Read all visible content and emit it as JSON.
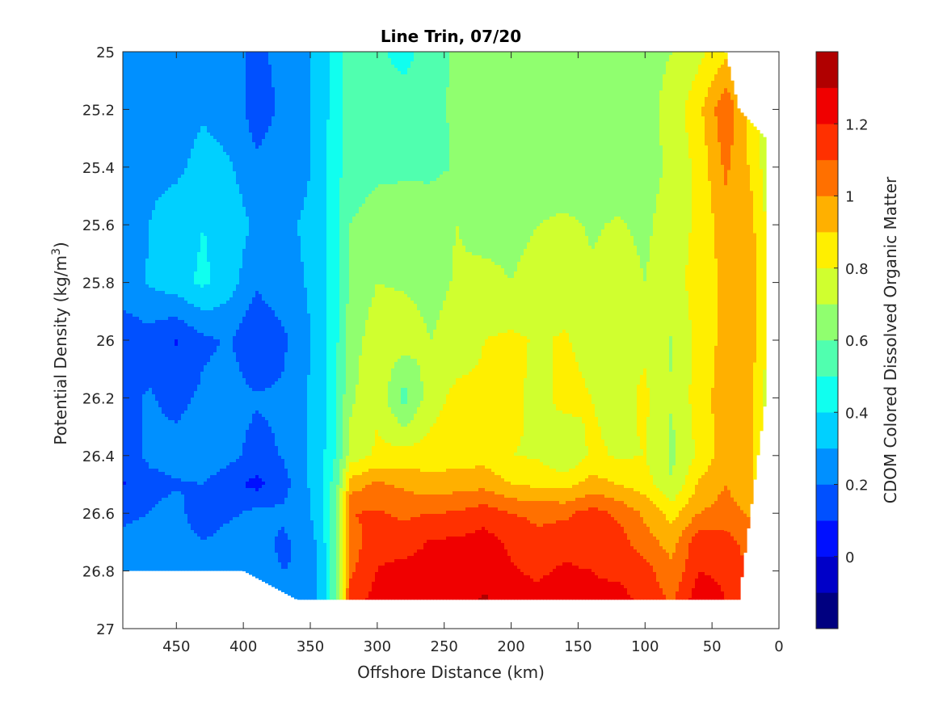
{
  "chart_data": {
    "type": "heatmap",
    "subtype": "filled-contour",
    "title": "Line Trin, 07/20",
    "xlabel": "Offshore Distance (km)",
    "ylabel": "Potential Density (kg/m",
    "ylabel_superscript": "3",
    "ylabel_suffix": ")",
    "xlim": [
      490,
      0
    ],
    "x_reversed": true,
    "ylim": [
      25,
      27
    ],
    "y_reversed": true,
    "xticks": [
      450,
      400,
      350,
      300,
      250,
      200,
      150,
      100,
      50,
      0
    ],
    "yticks": [
      25,
      25.2,
      25.4,
      25.6,
      25.8,
      26,
      26.2,
      26.4,
      26.6,
      26.8,
      27
    ],
    "ytick_labels": [
      "25",
      "25.2",
      "25.4",
      "25.6",
      "25.8",
      "26",
      "26.2",
      "26.4",
      "26.6",
      "26.8",
      "27"
    ],
    "colorbar": {
      "label": "CDOM Colored Dissolved Organic Matter",
      "range": [
        -0.2,
        1.4
      ],
      "levels": [
        -0.2,
        -0.1,
        0,
        0.1,
        0.2,
        0.3,
        0.4,
        0.5,
        0.6,
        0.7,
        0.8,
        0.9,
        1,
        1.1,
        1.2,
        1.3,
        1.4
      ],
      "ticks": [
        0,
        0.2,
        0.4,
        0.6,
        0.8,
        1,
        1.2
      ],
      "tick_labels": [
        "0",
        "0.2",
        "0.4",
        "0.6",
        "0.8",
        "1",
        "1.2"
      ],
      "colors": [
        "#000080",
        "#0000c8",
        "#0010ff",
        "#0050ff",
        "#0090ff",
        "#00d0ff",
        "#10ffef",
        "#50ffaf",
        "#90ff6f",
        "#d0ff2f",
        "#ffef00",
        "#ffb000",
        "#ff7000",
        "#ff3000",
        "#f00000",
        "#b00000"
      ]
    },
    "data_extent": {
      "columns_x": [
        490,
        450,
        400,
        360,
        340,
        320,
        300,
        250,
        200,
        150,
        100,
        80,
        60,
        40,
        30,
        10
      ],
      "deepest_density": [
        26.8,
        26.8,
        26.8,
        26.9,
        26.9,
        26.9,
        26.9,
        26.9,
        26.9,
        26.9,
        26.9,
        26.9,
        26.9,
        26.9,
        26.9,
        26.2
      ],
      "shallowest_density": [
        25,
        25,
        25,
        25,
        25,
        25,
        25,
        25,
        25,
        25,
        25,
        25,
        25,
        25,
        25.2,
        25.3
      ]
    },
    "field": {
      "x": [
        490,
        470,
        450,
        430,
        410,
        390,
        370,
        350,
        340,
        330,
        320,
        300,
        280,
        260,
        240,
        220,
        200,
        180,
        160,
        140,
        120,
        100,
        80,
        60,
        40,
        20,
        10
      ],
      "y": [
        25.0,
        25.2,
        25.4,
        25.6,
        25.8,
        26.0,
        26.2,
        26.4,
        26.5,
        26.6,
        26.7,
        26.8,
        26.9
      ],
      "z": [
        [
          0.26,
          0.28,
          0.24,
          0.25,
          0.24,
          0.17,
          0.24,
          0.3,
          0.36,
          0.45,
          0.55,
          0.52,
          0.46,
          0.56,
          0.62,
          0.64,
          0.65,
          0.66,
          0.65,
          0.64,
          0.64,
          0.66,
          0.7,
          0.77,
          0.87,
          0.8,
          0.72
        ],
        [
          0.24,
          0.28,
          0.26,
          0.29,
          0.26,
          0.15,
          0.22,
          0.3,
          0.37,
          0.46,
          0.55,
          0.56,
          0.55,
          0.57,
          0.62,
          0.64,
          0.65,
          0.65,
          0.64,
          0.64,
          0.65,
          0.66,
          0.74,
          0.87,
          1.08,
          0.86,
          0.75
        ],
        [
          0.21,
          0.28,
          0.28,
          0.33,
          0.31,
          0.22,
          0.26,
          0.3,
          0.37,
          0.47,
          0.56,
          0.58,
          0.58,
          0.57,
          0.61,
          0.64,
          0.64,
          0.63,
          0.63,
          0.64,
          0.65,
          0.66,
          0.72,
          0.83,
          1.02,
          0.88,
          0.76
        ],
        [
          0.23,
          0.3,
          0.35,
          0.4,
          0.36,
          0.28,
          0.29,
          0.31,
          0.37,
          0.48,
          0.6,
          0.64,
          0.66,
          0.68,
          0.7,
          0.66,
          0.67,
          0.7,
          0.72,
          0.69,
          0.71,
          0.68,
          0.75,
          0.82,
          0.96,
          0.92,
          0.8
        ],
        [
          0.26,
          0.31,
          0.36,
          0.42,
          0.34,
          0.22,
          0.27,
          0.31,
          0.37,
          0.48,
          0.62,
          0.7,
          0.69,
          0.67,
          0.71,
          0.73,
          0.7,
          0.74,
          0.76,
          0.71,
          0.74,
          0.7,
          0.76,
          0.84,
          0.92,
          0.94,
          0.82
        ],
        [
          0.13,
          0.16,
          0.09,
          0.18,
          0.21,
          0.1,
          0.18,
          0.3,
          0.37,
          0.49,
          0.66,
          0.75,
          0.75,
          0.7,
          0.74,
          0.8,
          0.82,
          0.79,
          0.81,
          0.76,
          0.79,
          0.78,
          0.69,
          0.84,
          0.93,
          0.94,
          0.82
        ],
        [
          0.18,
          0.21,
          0.17,
          0.22,
          0.24,
          0.21,
          0.22,
          0.31,
          0.38,
          0.51,
          0.68,
          0.78,
          0.56,
          0.76,
          0.83,
          0.82,
          0.84,
          0.76,
          0.84,
          0.8,
          0.76,
          0.82,
          0.7,
          0.85,
          0.95,
          0.9,
          0.76
        ],
        [
          0.16,
          0.22,
          0.24,
          0.27,
          0.23,
          0.16,
          0.21,
          0.31,
          0.39,
          0.52,
          0.74,
          0.82,
          0.84,
          0.84,
          0.85,
          0.86,
          0.8,
          0.79,
          0.7,
          0.82,
          0.79,
          0.8,
          0.68,
          0.82,
          0.96,
          0.91,
          0.8
        ],
        [
          0.09,
          0.17,
          0.19,
          0.2,
          0.13,
          0.07,
          0.16,
          0.31,
          0.4,
          0.58,
          0.95,
          1.02,
          0.98,
          0.94,
          0.96,
          0.97,
          0.9,
          0.88,
          0.86,
          0.94,
          0.9,
          0.85,
          0.7,
          0.91,
          1.0,
          0.92,
          0.82
        ],
        [
          0.18,
          0.2,
          0.24,
          0.12,
          0.18,
          0.23,
          0.22,
          0.3,
          0.39,
          0.62,
          1.1,
          1.11,
          1.08,
          1.1,
          1.11,
          1.16,
          1.1,
          1.08,
          1.08,
          1.14,
          1.08,
          0.98,
          0.86,
          1.0,
          1.04,
          0.98,
          0.88
        ],
        [
          0.22,
          0.24,
          0.26,
          0.2,
          0.26,
          0.23,
          0.18,
          0.25,
          0.38,
          0.62,
          1.04,
          1.18,
          1.14,
          1.21,
          1.22,
          1.24,
          1.18,
          1.12,
          1.16,
          1.13,
          1.15,
          1.04,
          0.96,
          1.16,
          1.14,
          1.05,
          0.95
        ],
        [
          0.2,
          0.23,
          0.27,
          0.26,
          0.27,
          0.24,
          0.2,
          0.21,
          0.37,
          0.61,
          1.08,
          1.2,
          1.24,
          1.26,
          1.24,
          1.26,
          1.21,
          1.18,
          1.22,
          1.2,
          1.18,
          1.14,
          1.02,
          1.2,
          1.18,
          1.08,
          1.0
        ],
        [
          0.2,
          0.23,
          0.27,
          0.26,
          0.27,
          0.24,
          0.22,
          0.22,
          0.36,
          0.61,
          1.14,
          1.24,
          1.24,
          1.26,
          1.26,
          1.31,
          1.26,
          1.23,
          1.28,
          1.22,
          1.23,
          1.18,
          1.08,
          1.26,
          1.2,
          1.1,
          1.02
        ]
      ]
    }
  }
}
